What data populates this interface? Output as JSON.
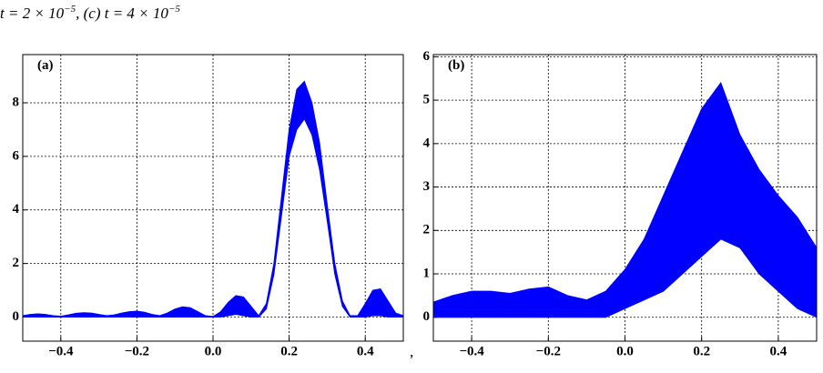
{
  "caption": [
    "t = 2 × 10",
    "−5",
    ", (c) t = 4 × 10",
    "−5"
  ],
  "separator": ",",
  "chart_data": [
    {
      "type": "band",
      "label": "(a)",
      "color": "#0000ff",
      "grid": true,
      "x": [
        -0.5,
        -0.48,
        -0.46,
        -0.44,
        -0.42,
        -0.4,
        -0.38,
        -0.36,
        -0.34,
        -0.32,
        -0.3,
        -0.28,
        -0.26,
        -0.24,
        -0.22,
        -0.2,
        -0.18,
        -0.16,
        -0.14,
        -0.12,
        -0.1,
        -0.08,
        -0.06,
        -0.04,
        -0.02,
        0,
        0.02,
        0.04,
        0.06,
        0.08,
        0.1,
        0.12,
        0.14,
        0.16,
        0.18,
        0.2,
        0.22,
        0.24,
        0.26,
        0.28,
        0.3,
        0.32,
        0.34,
        0.36,
        0.38,
        0.4,
        0.42,
        0.44,
        0.46,
        0.48,
        0.5
      ],
      "upper": [
        0.05,
        0.1,
        0.12,
        0.1,
        0.05,
        0.03,
        0.08,
        0.14,
        0.16,
        0.15,
        0.1,
        0.05,
        0.08,
        0.15,
        0.2,
        0.22,
        0.18,
        0.1,
        0.05,
        0.15,
        0.3,
        0.38,
        0.35,
        0.2,
        0.05,
        0.02,
        0.2,
        0.55,
        0.8,
        0.75,
        0.4,
        0.05,
        0.5,
        2.0,
        4.5,
        7.0,
        8.5,
        8.8,
        8.0,
        6.5,
        4.2,
        2.0,
        0.6,
        0.05,
        0.05,
        0.5,
        1.0,
        1.05,
        0.6,
        0.15,
        0.05
      ],
      "lower": [
        0,
        0,
        0,
        0,
        0,
        0,
        0,
        0,
        0,
        0,
        0,
        0,
        0,
        0,
        0,
        0,
        0,
        0,
        0,
        0,
        0,
        0,
        0,
        0,
        0,
        0,
        0,
        0.05,
        0.1,
        0.05,
        0,
        0,
        0.3,
        1.6,
        3.8,
        6.0,
        7.0,
        7.4,
        6.8,
        5.5,
        3.6,
        1.6,
        0.4,
        0,
        0,
        0,
        0.05,
        0.05,
        0,
        0,
        0
      ],
      "xlim": [
        -0.5,
        0.5
      ],
      "ylim": [
        -0.9,
        9.8
      ],
      "xticks": [
        {
          "value": -0.4,
          "label": "−0.4"
        },
        {
          "value": -0.2,
          "label": "−0.2"
        },
        {
          "value": 0,
          "label": "0.0"
        },
        0.2,
        0.4
      ],
      "yticks": [
        0,
        2,
        4,
        6,
        8
      ]
    },
    {
      "type": "band",
      "label": "(b)",
      "color": "#0000ff",
      "grid": true,
      "x": [
        -0.5,
        -0.45,
        -0.4,
        -0.35,
        -0.3,
        -0.25,
        -0.2,
        -0.15,
        -0.1,
        -0.05,
        0,
        0.05,
        0.1,
        0.15,
        0.2,
        0.25,
        0.3,
        0.35,
        0.4,
        0.45,
        0.5
      ],
      "upper": [
        0.35,
        0.5,
        0.6,
        0.6,
        0.55,
        0.65,
        0.7,
        0.5,
        0.4,
        0.6,
        1.1,
        1.8,
        2.8,
        3.8,
        4.8,
        5.4,
        4.2,
        3.4,
        2.8,
        2.3,
        1.6
      ],
      "lower": [
        0,
        0,
        0,
        0,
        0,
        0,
        0,
        0,
        0,
        0,
        0.2,
        0.4,
        0.6,
        1.0,
        1.4,
        1.8,
        1.6,
        1.0,
        0.6,
        0.2,
        0
      ],
      "xlim": [
        -0.5,
        0.5
      ],
      "ylim": [
        -0.55,
        6.05
      ],
      "xticks": [
        {
          "value": -0.4,
          "label": "−0.4"
        },
        {
          "value": -0.2,
          "label": "−0.2"
        },
        {
          "value": 0,
          "label": "0.0"
        },
        0.2,
        0.4
      ],
      "yticks": [
        0,
        1,
        2,
        3,
        4,
        5,
        6
      ]
    }
  ]
}
